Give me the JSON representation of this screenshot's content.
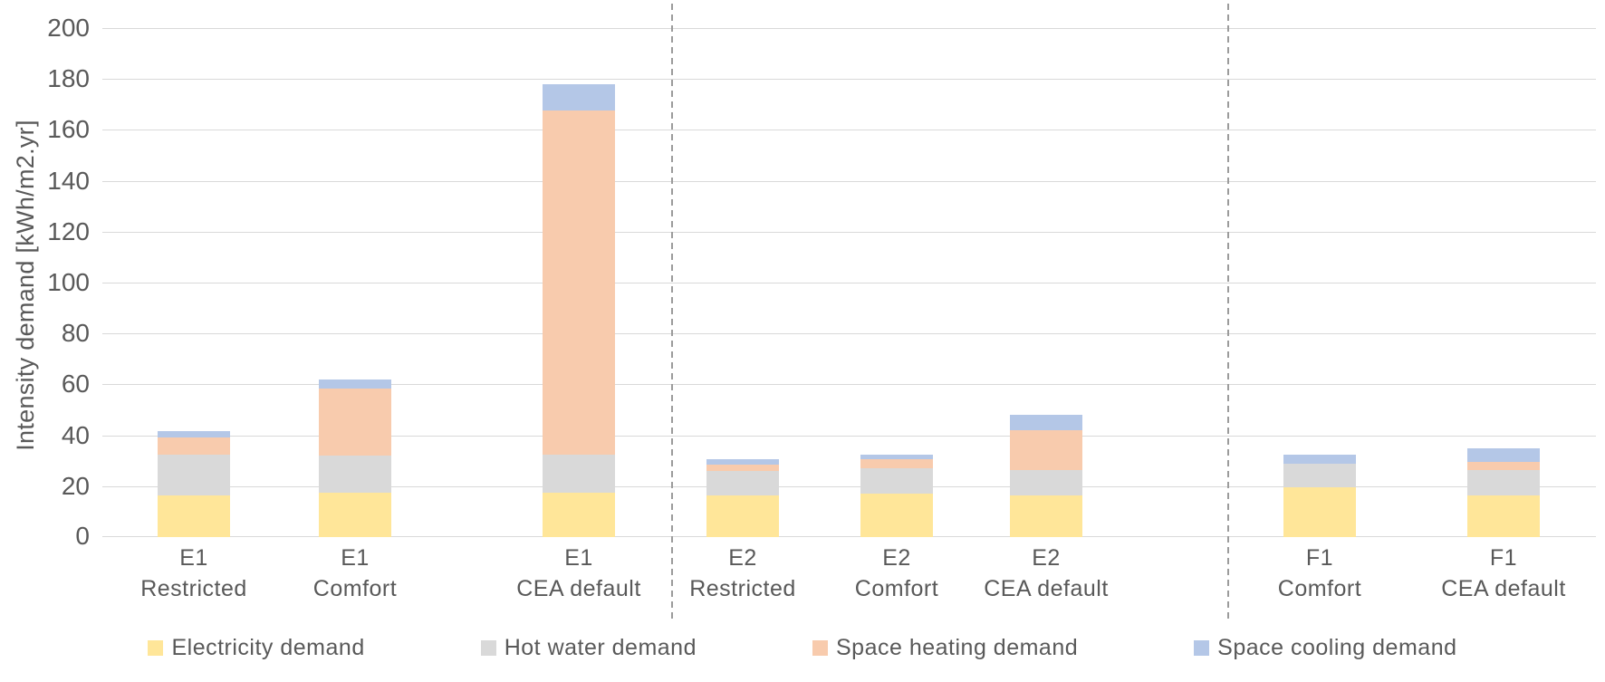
{
  "chart_data": {
    "type": "bar",
    "stacked": true,
    "title": "",
    "ylabel": "Intensity demand [kWh/m2.yr]",
    "xlabel": "",
    "ylim": [
      0,
      200
    ],
    "yticks": [
      0,
      20,
      40,
      60,
      80,
      100,
      120,
      140,
      160,
      180,
      200
    ],
    "grid": true,
    "legend_position": "bottom",
    "groups": [
      {
        "name": "E1",
        "separator_after": true
      },
      {
        "name": "E2",
        "separator_after": true
      },
      {
        "name": "F1",
        "separator_after": false
      }
    ],
    "categories": [
      {
        "top": "E1",
        "bottom": "Restricted",
        "group": 0
      },
      {
        "top": "E1",
        "bottom": "Comfort",
        "group": 0
      },
      {
        "top": "E1",
        "bottom": "CEA default",
        "group": 0
      },
      {
        "top": "E2",
        "bottom": "Restricted",
        "group": 1
      },
      {
        "top": "E2",
        "bottom": "Comfort",
        "group": 1
      },
      {
        "top": "E2",
        "bottom": "CEA default",
        "group": 1
      },
      {
        "top": "F1",
        "bottom": "Comfort",
        "group": 2
      },
      {
        "top": "F1",
        "bottom": "CEA default",
        "group": 2
      }
    ],
    "series": [
      {
        "name": "Electricity demand",
        "color": "#FFE699",
        "values": [
          16.5,
          17.5,
          17.5,
          16.5,
          17.0,
          16.5,
          19.5,
          16.5
        ]
      },
      {
        "name": "Hot water demand",
        "color": "#D9D9D9",
        "values": [
          16.0,
          14.5,
          15.0,
          9.5,
          10.0,
          10.0,
          9.5,
          10.0
        ]
      },
      {
        "name": "Space heating demand",
        "color": "#F8CBAD",
        "values": [
          6.5,
          26.5,
          135.0,
          2.5,
          3.5,
          15.5,
          0.0,
          3.0
        ]
      },
      {
        "name": "Space cooling demand",
        "color": "#B4C7E7",
        "values": [
          2.5,
          3.5,
          10.5,
          2.0,
          2.0,
          6.0,
          3.5,
          5.5
        ]
      }
    ]
  },
  "style": {
    "background": "#FFFFFF",
    "text_color": "#595959",
    "gridline_color": "#D9D9D9",
    "separator_color": "#9B9B9B"
  }
}
